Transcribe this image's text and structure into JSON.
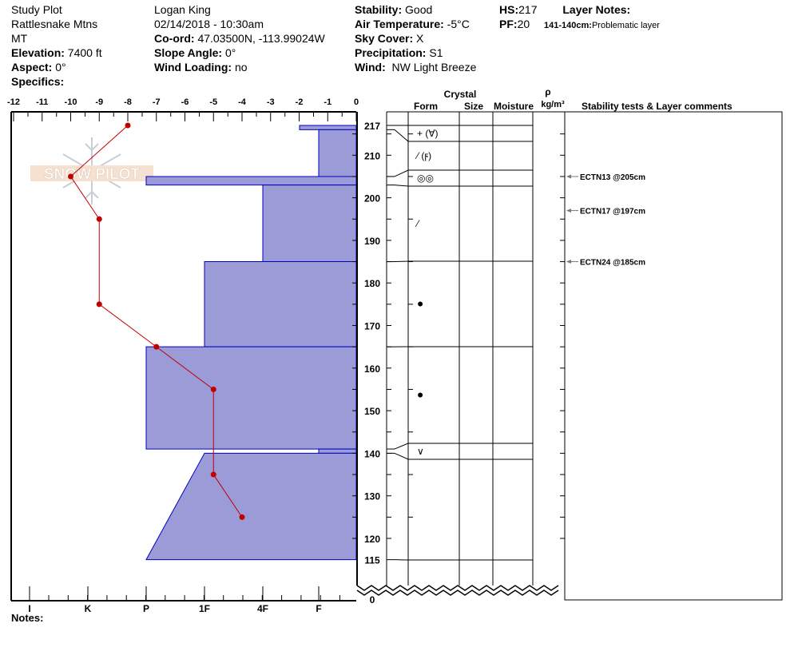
{
  "header": {
    "col1": {
      "site": "Study Plot",
      "range": "Rattlesnake Mtns",
      "state": "MT",
      "elevation_label": "Elevation:",
      "elevation": "7400 ft",
      "aspect_label": "Aspect:",
      "aspect": "0°",
      "specifics_label": "Specifics:"
    },
    "col2": {
      "observer": "Logan King",
      "datetime": "02/14/2018 - 10:30am",
      "coord_label": "Co-ord:",
      "coord": "47.03500N, -113.99024W",
      "slope_label": "Slope Angle:",
      "slope": "0°",
      "wind_loading_label": "Wind Loading:",
      "wind_loading": "no"
    },
    "col3": {
      "stability_label": "Stability:",
      "stability": "Good",
      "air_temp_label": "Air Temperature:",
      "air_temp": "-5°C",
      "sky_label": "Sky Cover:",
      "sky": "X",
      "precip_label": "Precipitation:",
      "precip": "S1",
      "wind_label": "Wind:",
      "wind": "NW Light Breeze"
    },
    "col4": {
      "hs_label": "HS:",
      "hs": "217",
      "pf_label": "PF:",
      "pf": "20",
      "layer_notes_label": "Layer Notes:",
      "layer_note_range": "141-140cm:",
      "layer_note": "Problematic layer"
    }
  },
  "table_headers": {
    "crystal": "Crystal",
    "form": "Form",
    "size": "Size",
    "moisture": "Moisture",
    "rho": "ρ",
    "density_unit": "kg/m³",
    "comments": "Stability tests & Layer comments"
  },
  "notes_label": "Notes:",
  "logo_text": "SNOW PILOT",
  "colors": {
    "hardness_fill": "#9b9bd7",
    "hardness_stroke": "#0000c0",
    "temp_line": "#c00000"
  },
  "temp_axis": {
    "ticks": [
      "-12",
      "-11",
      "-10",
      "-9",
      "-8",
      "-7",
      "-6",
      "-5",
      "-4",
      "-3",
      "-2",
      "-1",
      "0"
    ]
  },
  "hardness_axis": {
    "ticks": [
      "I",
      "K",
      "P",
      "1F",
      "4F",
      "F"
    ]
  },
  "depth_axis": {
    "ticks": [
      "217",
      "210",
      "200",
      "190",
      "180",
      "170",
      "160",
      "150",
      "140",
      "130",
      "120",
      "115",
      "0"
    ]
  },
  "temperature_profile": [
    {
      "depth": 217,
      "temp": -8
    },
    {
      "depth": 205,
      "temp": -10
    },
    {
      "depth": 195,
      "temp": -9
    },
    {
      "depth": 175,
      "temp": -9
    },
    {
      "depth": 165,
      "temp": -7
    },
    {
      "depth": 155,
      "temp": -5
    },
    {
      "depth": 135,
      "temp": -5
    },
    {
      "depth": 125,
      "temp": -4
    }
  ],
  "layers": [
    {
      "top": 217,
      "bottom": 216,
      "hardness_top": "4F+",
      "hardness_bottom": "4F+",
      "form": "+ (∀)"
    },
    {
      "top": 216,
      "bottom": 205,
      "hardness_top": "F",
      "hardness_bottom": "F",
      "form": "⁄ (ϝ)"
    },
    {
      "top": 205,
      "bottom": 203,
      "hardness_top": "P",
      "hardness_bottom": "P",
      "form": "◎◎"
    },
    {
      "top": 203,
      "bottom": 185,
      "hardness_top": "4F",
      "hardness_bottom": "4F",
      "form": "⁄"
    },
    {
      "top": 185,
      "bottom": 165,
      "hardness_top": "1F",
      "hardness_bottom": "1F",
      "form": "●"
    },
    {
      "top": 165,
      "bottom": 141,
      "hardness_top": "P",
      "hardness_bottom": "P",
      "form": "●"
    },
    {
      "top": 141,
      "bottom": 140,
      "hardness_top": "F",
      "hardness_bottom": "F",
      "form": "∨"
    },
    {
      "top": 140,
      "bottom": 115,
      "hardness_top": "1F",
      "hardness_bottom": "P",
      "form": ""
    }
  ],
  "stability_tests": [
    {
      "depth": 205,
      "label": "ECTN13 @205cm"
    },
    {
      "depth": 197,
      "label": "ECTN17 @197cm"
    },
    {
      "depth": 185,
      "label": "ECTN24 @185cm"
    }
  ]
}
